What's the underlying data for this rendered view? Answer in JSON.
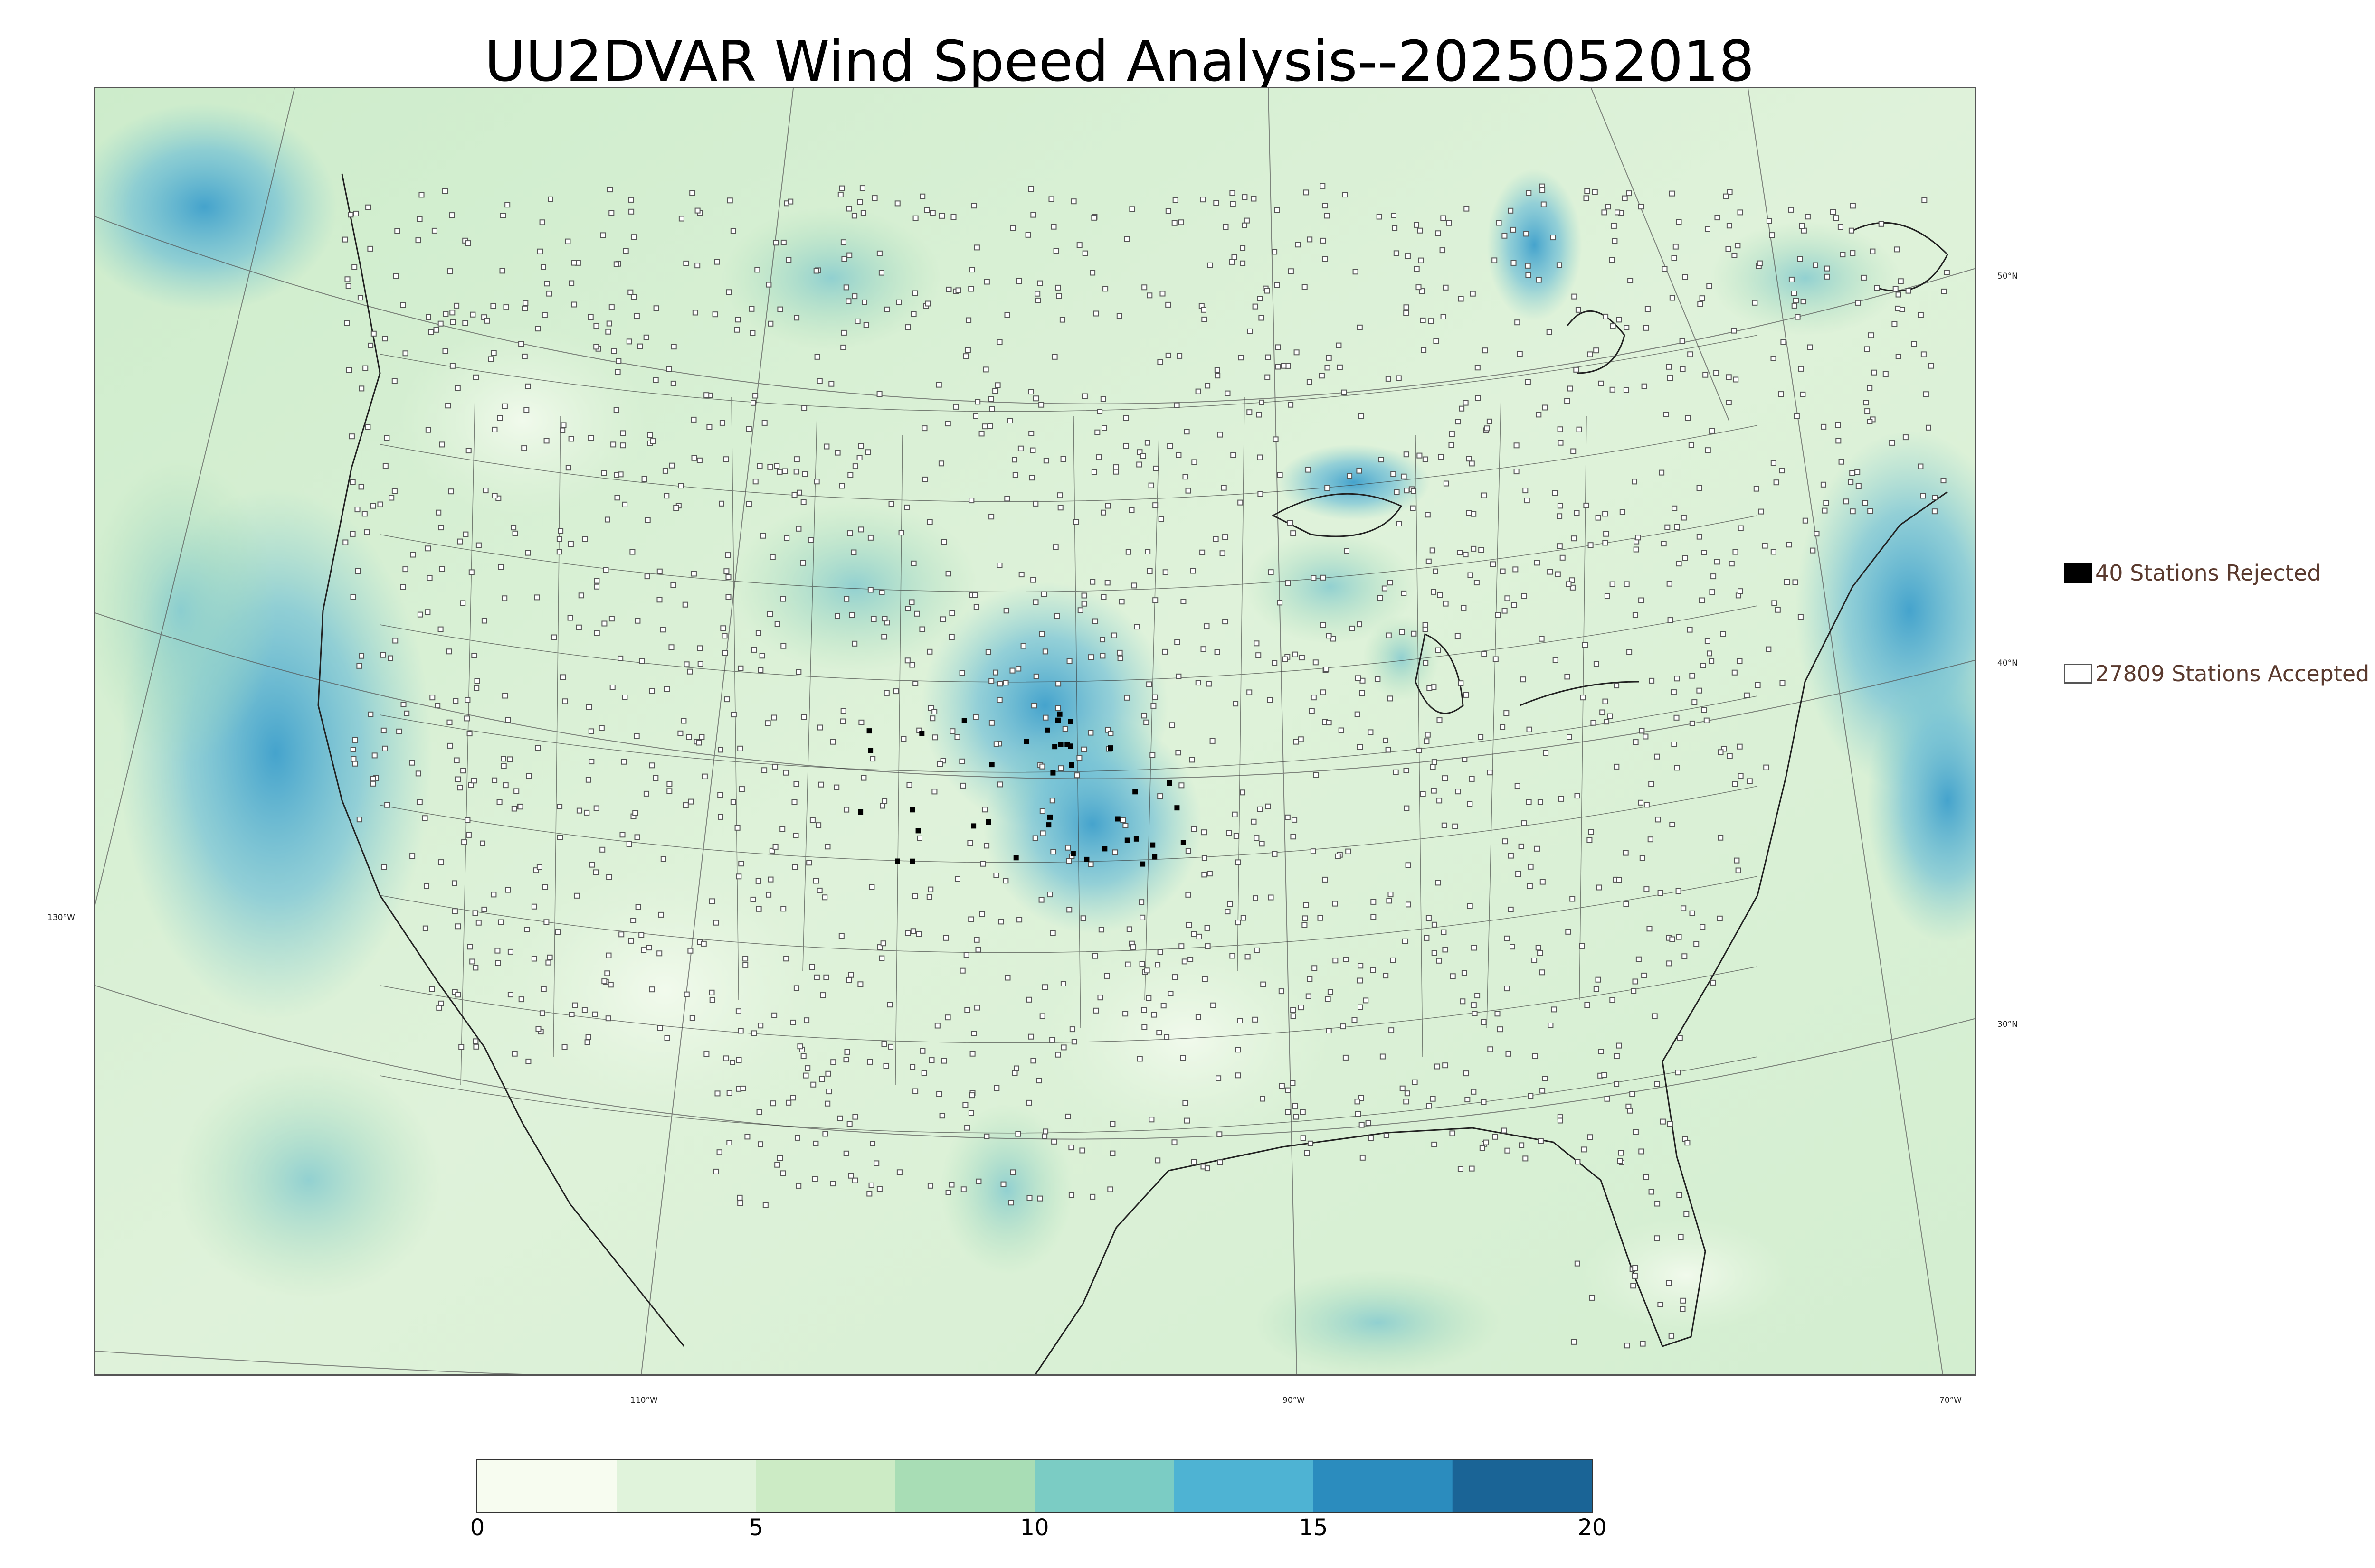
{
  "title": "UU2DVAR Wind Speed Analysis--2025052018",
  "legend": {
    "rejected_label": "40 Stations Rejected",
    "accepted_label": "27809 Stations Accepted"
  },
  "axis_labels": {
    "lon_130": "130°W",
    "lon_110": "110°W",
    "lon_90": "90°W",
    "lon_70": "70°W",
    "lat_50": "50°N",
    "lat_40": "40°N",
    "lat_30": "30°N"
  },
  "colorbar": {
    "ticks": [
      "0",
      "5",
      "10",
      "15",
      "20"
    ],
    "range": [
      0,
      20
    ],
    "colors": [
      "#f7fcf0",
      "#e0f3db",
      "#ccebc5",
      "#a8ddb5",
      "#7bccc4",
      "#4eb3d3",
      "#2b8cbe",
      "#1a6496"
    ]
  },
  "colors": {
    "land_base": "#d4eecf",
    "ocean_base": "#bfe6c4",
    "high_wind": "#4aa8d0",
    "very_high_wind": "#2b8cbe",
    "coastline": "#222222",
    "station_accepted": "#ffffff",
    "station_rejected": "#000000"
  }
}
